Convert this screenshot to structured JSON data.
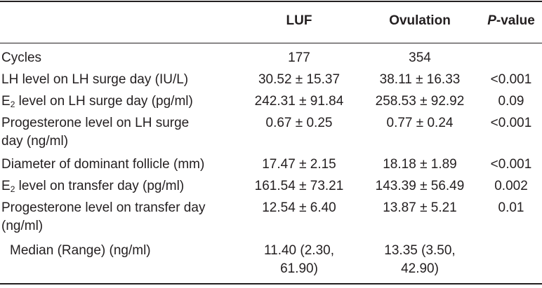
{
  "table": {
    "header": {
      "luf": "LUF",
      "ovulation": "Ovulation",
      "p": {
        "italic": "P",
        "rest": "-value"
      }
    },
    "rows": [
      {
        "label": "Cycles",
        "luf": "177",
        "ovulation": "354"
      },
      {
        "label": "LH level on LH surge day (IU/L)",
        "luf": "30.52 ± 15.37",
        "ovulation": "38.11 ± 16.33",
        "p": "<0.001"
      },
      {
        "label": {
          "main": "E",
          "sub": "2",
          "rest": " level on LH surge day (pg/ml)"
        },
        "luf": "242.31 ± 91.84",
        "ovulation": "258.53 ± 92.92",
        "p": "0.09"
      },
      {
        "label": [
          "Progesterone level on LH surge",
          "day (ng/ml)"
        ],
        "luf": "0.67 ± 0.25",
        "ovulation": "0.77 ± 0.24",
        "p": "<0.001"
      },
      {
        "label": "Diameter of dominant follicle (mm)",
        "luf": "17.47 ± 2.15",
        "ovulation": "18.18 ± 1.89",
        "p": "<0.001"
      },
      {
        "label": {
          "main": "E",
          "sub": "2",
          "rest": " level on transfer day (pg/ml)"
        },
        "luf": "161.54 ± 73.21",
        "ovulation": "143.39 ± 56.49",
        "p": "0.002"
      },
      {
        "label": [
          "Progesterone level on transfer day",
          "(ng/ml)"
        ],
        "luf": "12.54 ± 6.40",
        "ovulation": "13.87 ± 5.21",
        "p": "0.01"
      }
    ],
    "median": {
      "label": "Median (Range) (ng/ml)",
      "luf": [
        "11.40 (2.30,",
        "61.90)"
      ],
      "ovulation": [
        "13.35 (3.50,",
        "42.90)"
      ]
    }
  }
}
